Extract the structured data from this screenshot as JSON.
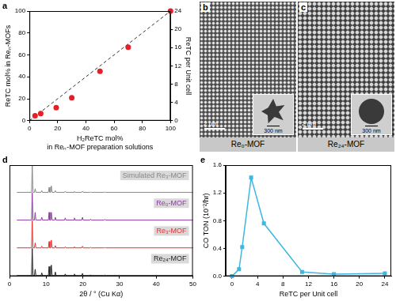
{
  "chart_data": [
    {
      "panel_label": "a",
      "type": "scatter",
      "x_label": "H₂ReTC mol%\nin Reₙ-MOF preparation solutions",
      "y_label": "ReTC mol% in Reₙ-MOFs",
      "y2_label": "ReTC per Unit cell",
      "xlim": [
        0,
        100
      ],
      "xticks": [
        0,
        20,
        40,
        60,
        80,
        100
      ],
      "ylim": [
        0,
        100
      ],
      "yticks": [
        0,
        20,
        40,
        60,
        80,
        100
      ],
      "y2lim": [
        0,
        24
      ],
      "y2ticks": [
        0,
        4,
        8,
        12,
        16,
        20,
        24
      ],
      "grid": false,
      "series": [
        {
          "type": "scatter",
          "color": "#e41f26",
          "marker": "circle",
          "x": [
            4,
            8,
            19,
            30,
            50,
            70,
            100
          ],
          "values": [
            4.5,
            6.5,
            12,
            21,
            45,
            67,
            100
          ]
        },
        {
          "type": "line",
          "color": "#333333",
          "line_style": "dashed",
          "x": [
            0,
            100
          ],
          "values": [
            0,
            100
          ]
        }
      ]
    },
    {
      "panel_label": "d",
      "type": "line",
      "x_label": "2θ / ° (Cu Kα)",
      "xlim": [
        0,
        50
      ],
      "xticks": [
        0,
        10,
        20,
        30,
        40,
        50
      ],
      "ylim": [
        0,
        100
      ],
      "tick_labels": "x",
      "grid": false,
      "x": [
        2,
        6.0,
        6.2,
        6.4,
        6.8,
        7.0,
        7.2,
        8.6,
        8.8,
        9.0,
        10.6,
        10.8,
        11.0,
        11.2,
        11.4,
        11.6,
        12.3,
        12.5,
        12.7,
        15.0,
        15.2,
        15.4,
        17.5,
        17.7,
        17.9,
        19.7,
        19.9,
        20.1,
        21.9,
        22.1,
        22.3,
        25.8,
        26.0,
        26.2,
        50
      ],
      "series": [
        {
          "name": "Re₂₄-MOF",
          "color": "#222222",
          "values": [
            2,
            2,
            100,
            2,
            2,
            25,
            2,
            2,
            12,
            2,
            2,
            35,
            2,
            2,
            40,
            2,
            2,
            15,
            2,
            2,
            8,
            2,
            2,
            8,
            2,
            2,
            10,
            2,
            2,
            5,
            2,
            2,
            4,
            2,
            2
          ]
        },
        {
          "name": "Re₃-MOF",
          "color": "#e8302e",
          "values": [
            2,
            2,
            100,
            2,
            2,
            20,
            2,
            2,
            8,
            2,
            2,
            25,
            2,
            2,
            30,
            2,
            2,
            10,
            2,
            2,
            6,
            2,
            2,
            6,
            2,
            2,
            8,
            2,
            2,
            4,
            2,
            2,
            3,
            2,
            2
          ]
        },
        {
          "name": "Re₀-MOF",
          "color": "#8a3b9e",
          "values": [
            2,
            2,
            100,
            2,
            2,
            30,
            2,
            2,
            12,
            2,
            2,
            30,
            2,
            2,
            30,
            2,
            2,
            12,
            2,
            2,
            10,
            2,
            2,
            10,
            2,
            2,
            12,
            2,
            2,
            6,
            2,
            2,
            5,
            2,
            2
          ]
        },
        {
          "name": "Simulated Re₃-MOF",
          "color": "#888888",
          "values": [
            2,
            2,
            100,
            2,
            2,
            15,
            2,
            2,
            8,
            2,
            2,
            20,
            2,
            2,
            25,
            2,
            2,
            8,
            2,
            2,
            6,
            2,
            2,
            5,
            2,
            2,
            6,
            2,
            2,
            3,
            2,
            2,
            3,
            2,
            2
          ]
        }
      ]
    },
    {
      "panel_label": "e",
      "type": "line",
      "x_label": "ReTC per Unit cell",
      "y_label": "CO TON (10⁻²/hr)",
      "xlim": [
        -1,
        25
      ],
      "xticks": [
        0,
        4,
        8,
        12,
        16,
        20,
        24
      ],
      "ylim": [
        0,
        1.6
      ],
      "yticks": [
        {
          "value": 0,
          "label": "0.0"
        },
        0.4,
        0.8,
        1.2,
        1.6
      ],
      "grid": false,
      "series": [
        {
          "color": "#3fb8e0",
          "marker": "square",
          "x": [
            0,
            1.1,
            1.6,
            3,
            5,
            11,
            16,
            24
          ],
          "values": [
            0,
            0.1,
            0.42,
            1.42,
            0.76,
            0.06,
            0.03,
            0.04
          ]
        }
      ]
    }
  ],
  "images": [
    {
      "panel_label": "b",
      "caption": "Re₀-MOF",
      "scale_bar": "2 μm",
      "inset_scale_bar": "300 nm"
    },
    {
      "panel_label": "c",
      "caption": "Re₂₄-MOF",
      "scale_bar": "2 μm",
      "inset_scale_bar": "300 nm"
    }
  ]
}
